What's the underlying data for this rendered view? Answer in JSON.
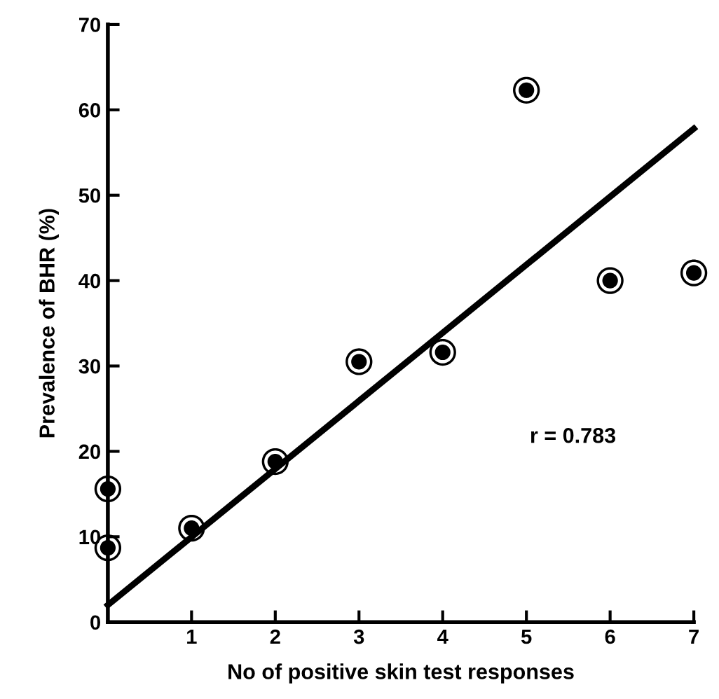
{
  "chart_data": {
    "type": "scatter",
    "xlabel": "No of positive skin test responses",
    "ylabel": "Prevalence of BHR (%)",
    "xlim": [
      0,
      7
    ],
    "xticks": [
      1,
      2,
      3,
      4,
      5,
      6,
      7
    ],
    "ylim": [
      0,
      70
    ],
    "yticks": [
      0,
      10,
      20,
      30,
      40,
      50,
      60,
      70
    ],
    "grid": false,
    "legend": false,
    "marker": "circle",
    "annotations": [
      "r = 0.783"
    ],
    "series": [
      {
        "color": "#000000",
        "x": [
          0,
          0,
          1,
          2,
          3,
          4,
          5,
          6,
          7
        ],
        "values": [
          8.7,
          15.6,
          11.0,
          18.8,
          30.5,
          31.6,
          62.3,
          40.0,
          40.9
        ]
      },
      {
        "type": "line",
        "color": "#000000",
        "x": [
          0,
          7
        ],
        "values": [
          2.0,
          57.8
        ],
        "line_style": "solid",
        "marker": "none"
      }
    ]
  }
}
